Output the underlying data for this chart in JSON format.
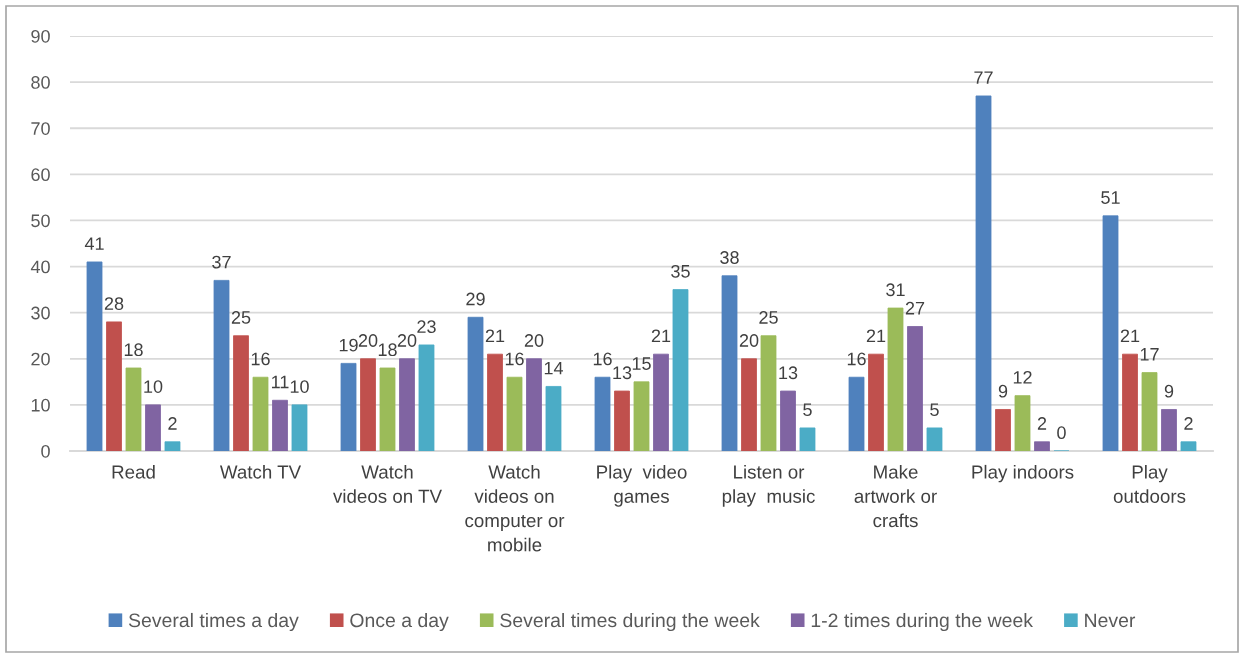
{
  "chart_data": {
    "type": "bar",
    "categories": [
      "Read",
      "Watch TV",
      "Watch\nvideos on TV",
      "Watch\nvideos on\ncomputer or\nmobile",
      "Play  video\ngames",
      "Listen or\nplay  music",
      "Make\nartwork or\ncrafts",
      "Play indoors",
      "Play\noutdoors"
    ],
    "series": [
      {
        "name": "Several times a day",
        "color": "#4f81bd",
        "values": [
          41,
          37,
          19,
          29,
          16,
          38,
          16,
          77,
          51
        ]
      },
      {
        "name": "Once a day",
        "color": "#c0504d",
        "values": [
          28,
          25,
          20,
          21,
          13,
          20,
          21,
          9,
          21
        ]
      },
      {
        "name": "Several times during the week",
        "color": "#9bbb59",
        "values": [
          18,
          16,
          18,
          16,
          15,
          25,
          31,
          12,
          17
        ]
      },
      {
        "name": "1-2 times during the week",
        "color": "#8064a2",
        "values": [
          10,
          11,
          20,
          20,
          21,
          13,
          27,
          2,
          9
        ]
      },
      {
        "name": "Never",
        "color": "#4bacc6",
        "values": [
          2,
          10,
          23,
          14,
          35,
          5,
          5,
          0,
          2
        ]
      }
    ],
    "ylim": [
      0,
      90
    ],
    "yticks": [
      0,
      10,
      20,
      30,
      40,
      50,
      60,
      70,
      80,
      90
    ],
    "grid": "y",
    "legend": "bottom",
    "data_labels": true
  }
}
